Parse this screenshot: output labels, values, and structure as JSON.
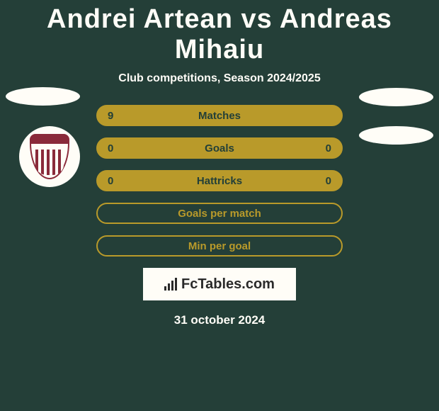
{
  "title": "Andrei Artean vs Andreas Mihaiu",
  "subtitle": "Club competitions, Season 2024/2025",
  "date": "31 october 2024",
  "logo_text": "FcTables.com",
  "colors": {
    "background": "#243f38",
    "bar_fill": "#b99a2a",
    "bar_border": "#b99a2a",
    "text_on_bar": "#223f38",
    "light": "#fffdf7",
    "badge_primary": "#8a2a3a"
  },
  "bars": [
    {
      "label": "Matches",
      "left": "9",
      "right": "",
      "filled": true
    },
    {
      "label": "Goals",
      "left": "0",
      "right": "0",
      "filled": true
    },
    {
      "label": "Hattricks",
      "left": "0",
      "right": "0",
      "filled": true
    },
    {
      "label": "Goals per match",
      "left": "",
      "right": "",
      "filled": false
    },
    {
      "label": "Min per goal",
      "left": "",
      "right": "",
      "filled": false
    }
  ]
}
